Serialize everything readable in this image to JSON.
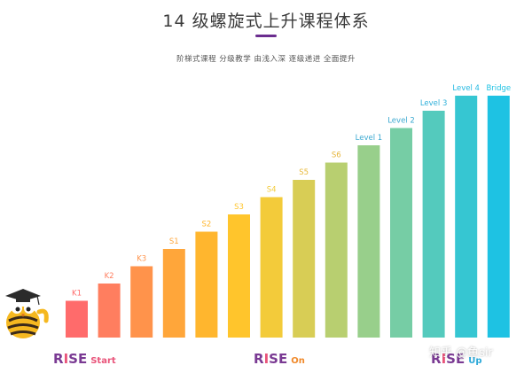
{
  "header": {
    "title": "14 级螺旋式上升课程体系",
    "subtitle": "阶梯式课程 分级教学 由浅入深 逐级递进 全面提升"
  },
  "colors": {
    "gradient": [
      "#ff6b6b",
      "#ff7e5f",
      "#ff934b",
      "#ffa63a",
      "#ffb62e",
      "#ffc52c",
      "#f3cb3a",
      "#d8cd55",
      "#b8cf70",
      "#98cf8b",
      "#76cda5",
      "#54cabd",
      "#36c6d2",
      "#1ec2e3"
    ],
    "brand_purple": "#6b2d8f"
  },
  "brands": {
    "start": {
      "r": "R",
      "i": "I",
      "se": "SE",
      "sub": "Start"
    },
    "on": {
      "r": "R",
      "i": "I",
      "se": "SE",
      "sub": "On"
    },
    "up": {
      "r": "R",
      "i": "I",
      "se": "SE",
      "sub": "Up"
    }
  },
  "watermark": "知乎 @鱼sir",
  "chart_data": {
    "type": "bar",
    "title": "",
    "categories": [
      "K1",
      "K2",
      "K3",
      "S1",
      "S2",
      "S3",
      "S4",
      "S5",
      "S6",
      "Level 1",
      "Level 2",
      "Level 3",
      "Level 4",
      "Bridge"
    ],
    "values": [
      1,
      2,
      3,
      4,
      5,
      6,
      7,
      8,
      9,
      10,
      11,
      12,
      13,
      14
    ],
    "label_colors": [
      "#ff6b6b",
      "#ff7e5f",
      "#ff934b",
      "#ffa63a",
      "#ffb62e",
      "#ffc52c",
      "#f3cb3a",
      "#e8b93a",
      "#e6b53a",
      "#3aa8d0",
      "#3aa8d0",
      "#2eb0da",
      "#23b8e2",
      "#1ec2e3"
    ],
    "ylim": [
      0,
      14
    ],
    "grid": false,
    "legend": "none"
  }
}
